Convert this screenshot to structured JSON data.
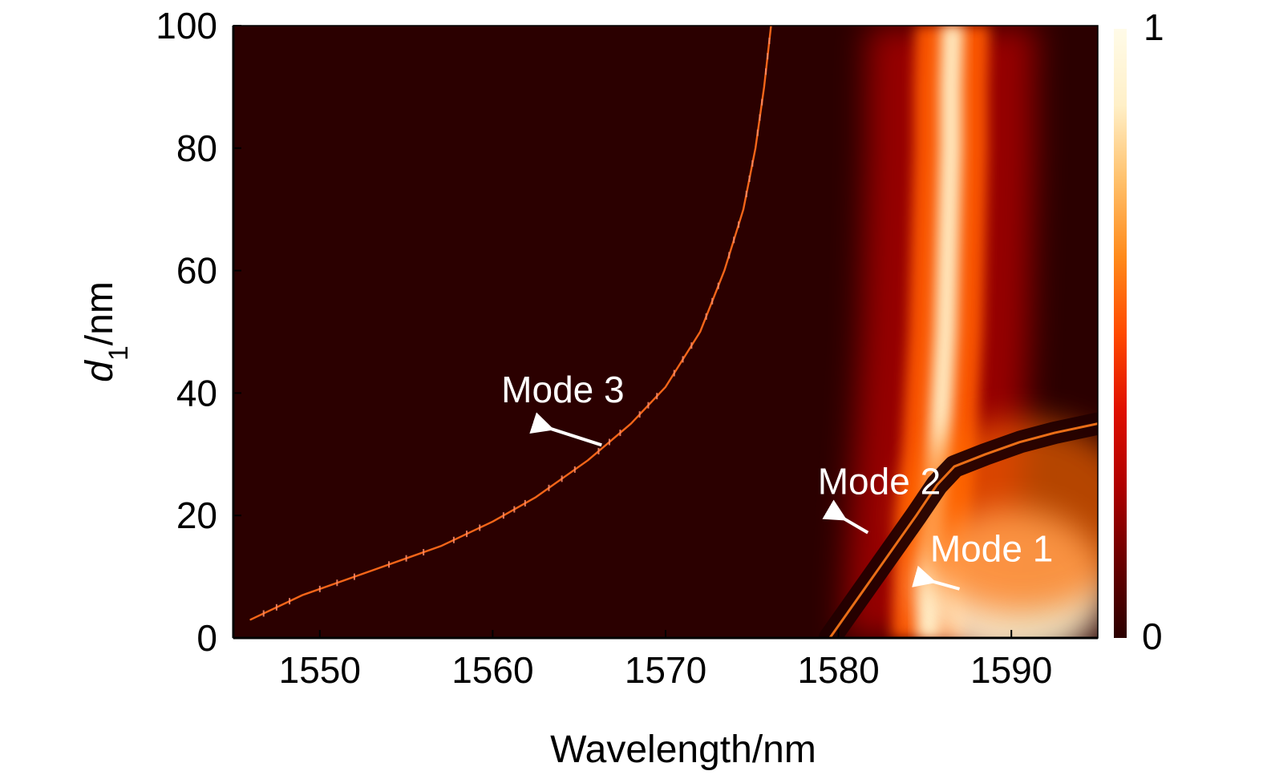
{
  "chart_data": {
    "type": "heatmap",
    "xlabel": "Wavelength/nm",
    "ylabel": {
      "main": "d",
      "subscript": "1",
      "suffix": "/nm"
    },
    "xlim": [
      1545,
      1595
    ],
    "ylim": [
      0,
      100
    ],
    "x_ticks": [
      1550,
      1560,
      1570,
      1580,
      1590
    ],
    "y_ticks": [
      0,
      20,
      40,
      60,
      80,
      100
    ],
    "colorbar": {
      "min": 0,
      "max": 1,
      "tick_labels": [
        "0",
        "1"
      ],
      "stops": [
        "#2b0000",
        "#6b0000",
        "#b00000",
        "#e01000",
        "#ff4a00",
        "#ff8a1a",
        "#ffc06a",
        "#fff0c8",
        "#fffbe8"
      ]
    },
    "grid": false,
    "legend": "none",
    "modes": [
      {
        "name": "Mode 1",
        "points": [
          [
            1585.2,
            0
          ],
          [
            1585.3,
            10
          ],
          [
            1585.5,
            20
          ],
          [
            1585.8,
            30
          ],
          [
            1586.0,
            40
          ],
          [
            1586.2,
            50
          ],
          [
            1586.3,
            60
          ],
          [
            1586.4,
            70
          ],
          [
            1586.5,
            80
          ],
          [
            1586.5,
            90
          ],
          [
            1586.6,
            100
          ]
        ]
      },
      {
        "name": "Mode 2",
        "points": [
          [
            1579.5,
            0
          ],
          [
            1580.5,
            4
          ],
          [
            1581.5,
            8
          ],
          [
            1582.5,
            12
          ],
          [
            1583.5,
            16
          ],
          [
            1584.5,
            20
          ],
          [
            1585.7,
            25
          ],
          [
            1586.7,
            28
          ],
          [
            1588.5,
            30
          ],
          [
            1590.5,
            32
          ],
          [
            1592.5,
            33.5
          ],
          [
            1595,
            35
          ]
        ]
      },
      {
        "name": "Mode 3",
        "points": [
          [
            1546.0,
            3
          ],
          [
            1549.0,
            7
          ],
          [
            1553.0,
            11
          ],
          [
            1557.0,
            15
          ],
          [
            1560.0,
            19
          ],
          [
            1562.5,
            23
          ],
          [
            1565.5,
            29
          ],
          [
            1568.0,
            35
          ],
          [
            1570.0,
            41
          ],
          [
            1572.0,
            50
          ],
          [
            1573.4,
            60
          ],
          [
            1574.5,
            70
          ],
          [
            1575.2,
            80
          ],
          [
            1575.7,
            90
          ],
          [
            1576.1,
            100
          ]
        ]
      }
    ],
    "annotations": [
      {
        "text": "Mode 3",
        "text_at": [
          1560.5,
          38.5
        ],
        "arrow_from": [
          1566.3,
          31.5
        ],
        "arrow_to": [
          1563.0,
          34.5
        ]
      },
      {
        "text": "Mode 2",
        "text_at": [
          1578.8,
          23.5
        ],
        "arrow_from": [
          1581.7,
          17.2
        ],
        "arrow_to": [
          1580.0,
          20.0
        ]
      },
      {
        "text": "Mode 1",
        "text_at": [
          1585.3,
          12.5
        ],
        "arrow_from": [
          1587.0,
          8.0
        ],
        "arrow_to": [
          1585.1,
          9.5
        ]
      }
    ]
  }
}
